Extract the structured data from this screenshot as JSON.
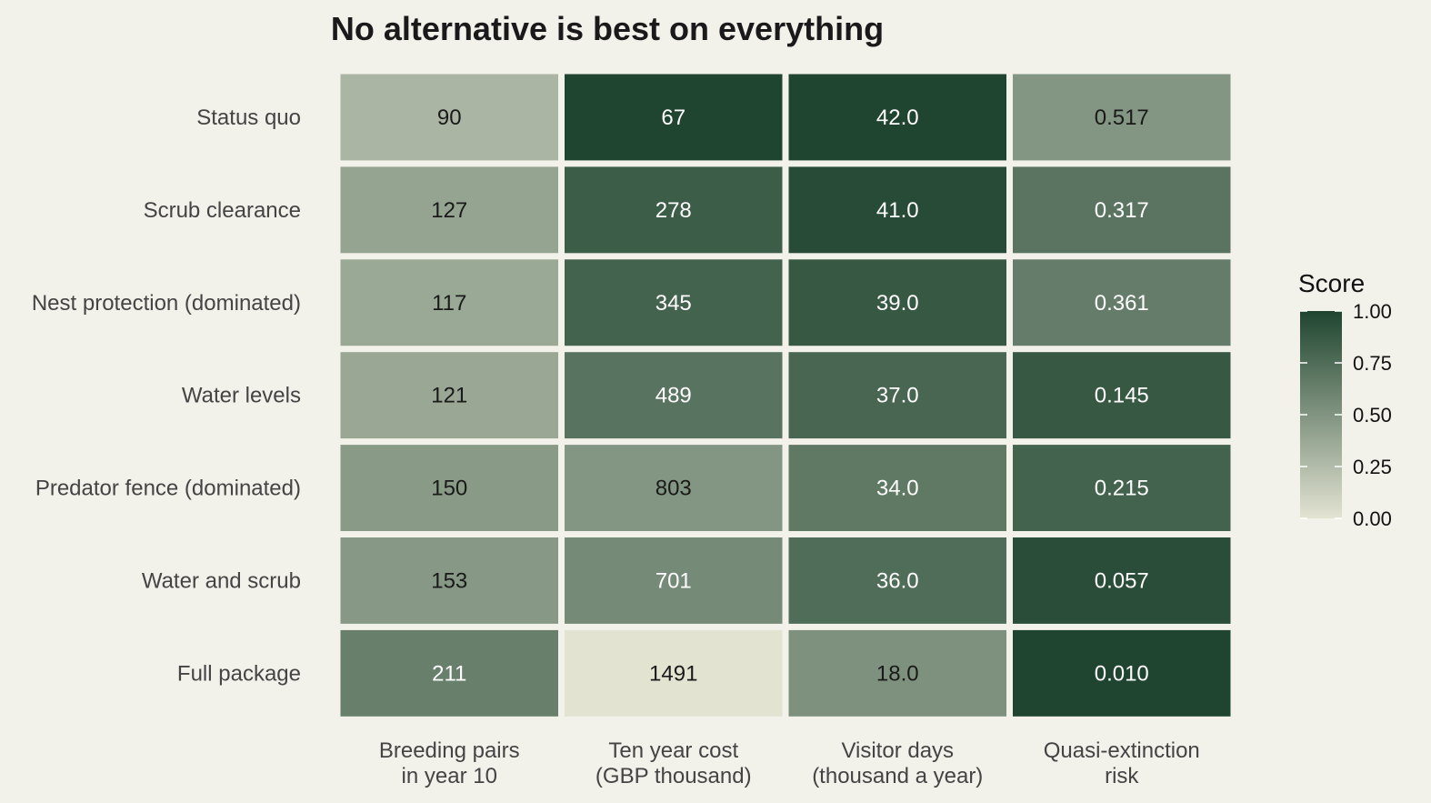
{
  "chart_data": {
    "type": "heatmap",
    "title": "No alternative is best on everything",
    "rows": [
      "Status quo",
      "Scrub clearance",
      "Nest protection (dominated)",
      "Water levels",
      "Predator fence (dominated)",
      "Water and scrub",
      "Full package"
    ],
    "columns": [
      [
        "Breeding pairs",
        "in year 10"
      ],
      [
        "Ten year cost",
        "(GBP thousand)"
      ],
      [
        "Visitor days",
        "(thousand a year)"
      ],
      [
        "Quasi-extinction",
        "risk"
      ]
    ],
    "labels": [
      [
        "90",
        "67",
        "42.0",
        "0.517"
      ],
      [
        "127",
        "278",
        "41.0",
        "0.317"
      ],
      [
        "117",
        "345",
        "39.0",
        "0.361"
      ],
      [
        "121",
        "489",
        "37.0",
        "0.145"
      ],
      [
        "150",
        "803",
        "34.0",
        "0.215"
      ],
      [
        "153",
        "701",
        "36.0",
        "0.057"
      ],
      [
        "211",
        "1491",
        "18.0",
        "0.010"
      ]
    ],
    "scores": [
      [
        0.29,
        1.0,
        1.0,
        0.49
      ],
      [
        0.4,
        0.85,
        0.96,
        0.7
      ],
      [
        0.37,
        0.81,
        0.88,
        0.65
      ],
      [
        0.38,
        0.71,
        0.79,
        0.88
      ],
      [
        0.46,
        0.49,
        0.67,
        0.81
      ],
      [
        0.47,
        0.56,
        0.75,
        0.95
      ],
      [
        0.63,
        0.0,
        0.52,
        1.0
      ]
    ],
    "legend": {
      "title": "Score",
      "ticks": [
        "0.00",
        "0.25",
        "0.50",
        "0.75",
        "1.00"
      ],
      "range": [
        0,
        1
      ],
      "low_color": "#e3e3d2",
      "high_color": "#1f4530"
    },
    "light_text_color": "#ffffff",
    "dark_text_color": "#1a1a1a"
  }
}
